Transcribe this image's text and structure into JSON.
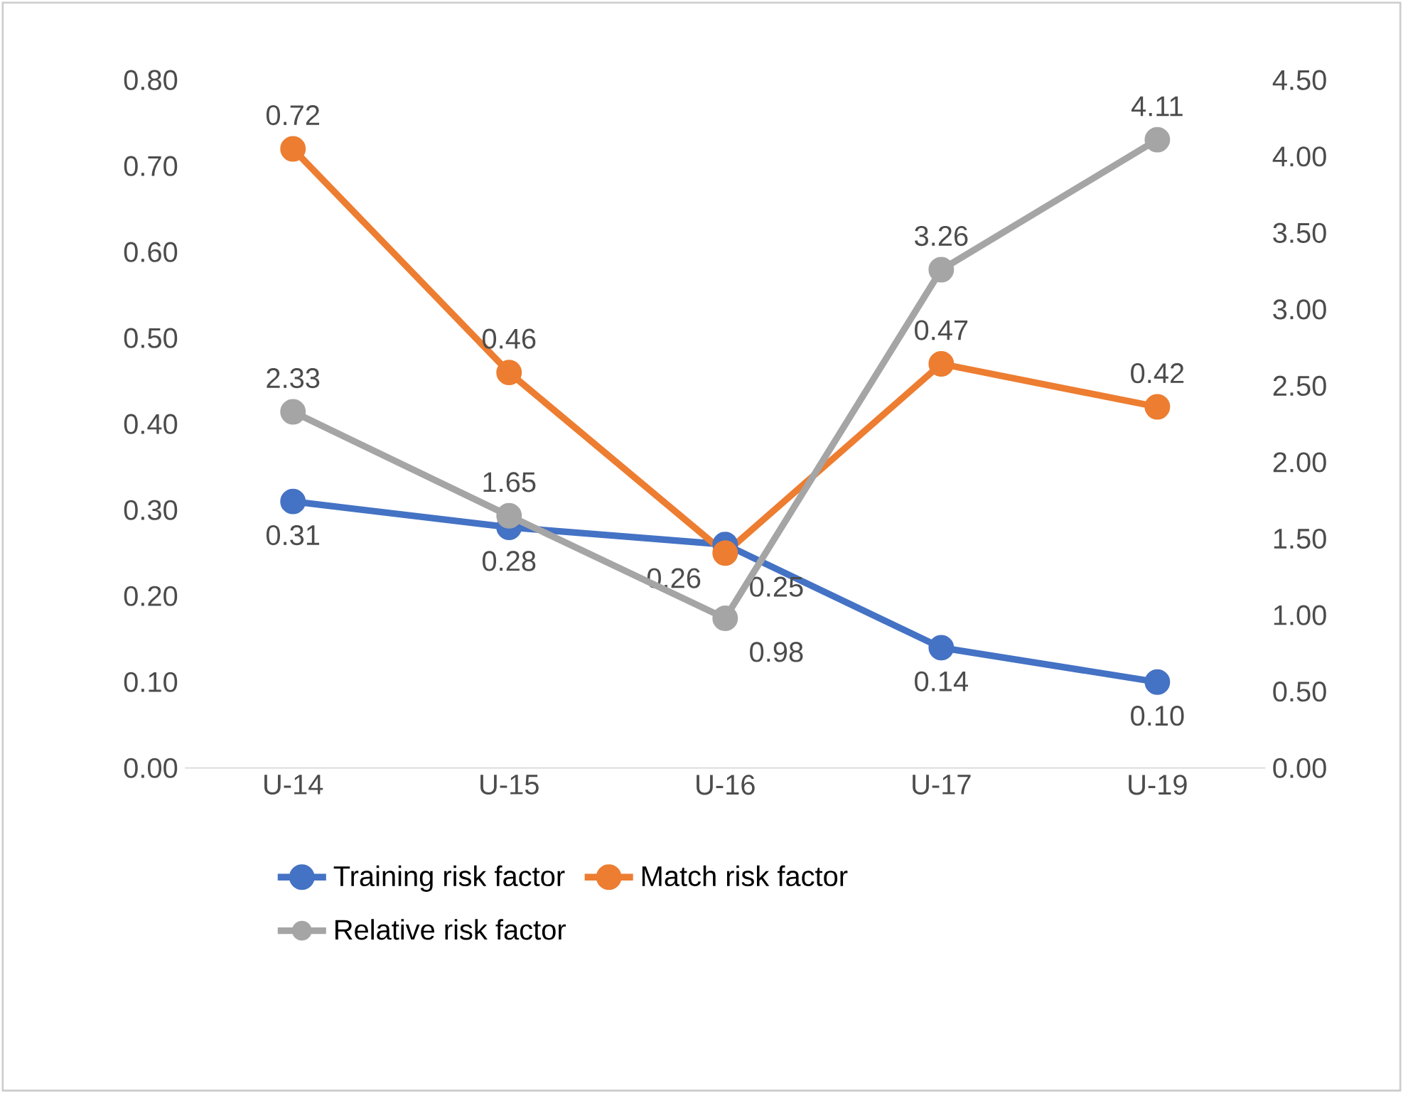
{
  "chart_data": {
    "type": "line",
    "categories": [
      "U-14",
      "U-15",
      "U-16",
      "U-17",
      "U-19"
    ],
    "series": [
      {
        "name": "Training risk factor",
        "color": "#4472c4",
        "values": [
          0.31,
          0.28,
          0.26,
          0.14,
          0.1
        ],
        "value_labels": [
          "0.31",
          "0.28",
          "0.26",
          "0.14",
          "0.10"
        ]
      },
      {
        "name": "Match risk factor",
        "color": "#ed7d31",
        "values": [
          0.72,
          0.46,
          0.25,
          0.47,
          0.42
        ],
        "value_labels": [
          "0.72",
          "0.46",
          "0.25",
          "0.47",
          "0.42"
        ]
      },
      {
        "name": "Relative risk factor",
        "color": "#a5a5a5",
        "axis": "y2",
        "values": [
          2.33,
          1.65,
          0.98,
          3.26,
          4.11
        ],
        "value_labels": [
          "2.33",
          "1.65",
          "0.98",
          "3.26",
          "4.11"
        ]
      }
    ],
    "ylim": [
      0,
      0.8
    ],
    "yticks": [
      {
        "value": 0,
        "label": "0.00"
      },
      {
        "value": 0.1,
        "label": "0.10"
      },
      {
        "value": 0.2,
        "label": "0.20"
      },
      {
        "value": 0.3,
        "label": "0.30"
      },
      {
        "value": 0.4,
        "label": "0.40"
      },
      {
        "value": 0.5,
        "label": "0.50"
      },
      {
        "value": 0.6,
        "label": "0.60"
      },
      {
        "value": 0.7,
        "label": "0.70"
      },
      {
        "value": 0.8,
        "label": "0.80"
      }
    ],
    "y2lim": [
      0,
      4.5
    ],
    "y2ticks": [
      {
        "value": 0,
        "label": "0.00"
      },
      {
        "value": 0.5,
        "label": "0.50"
      },
      {
        "value": 1,
        "label": "1.00"
      },
      {
        "value": 1.5,
        "label": "1.50"
      },
      {
        "value": 2,
        "label": "2.00"
      },
      {
        "value": 2.5,
        "label": "2.50"
      },
      {
        "value": 3,
        "label": "3.00"
      },
      {
        "value": 3.5,
        "label": "3.50"
      },
      {
        "value": 4,
        "label": "4.00"
      },
      {
        "value": 4.5,
        "label": "4.50"
      }
    ],
    "grid": false,
    "legend": "bottom",
    "marker": "circle",
    "line_style": "solid"
  }
}
